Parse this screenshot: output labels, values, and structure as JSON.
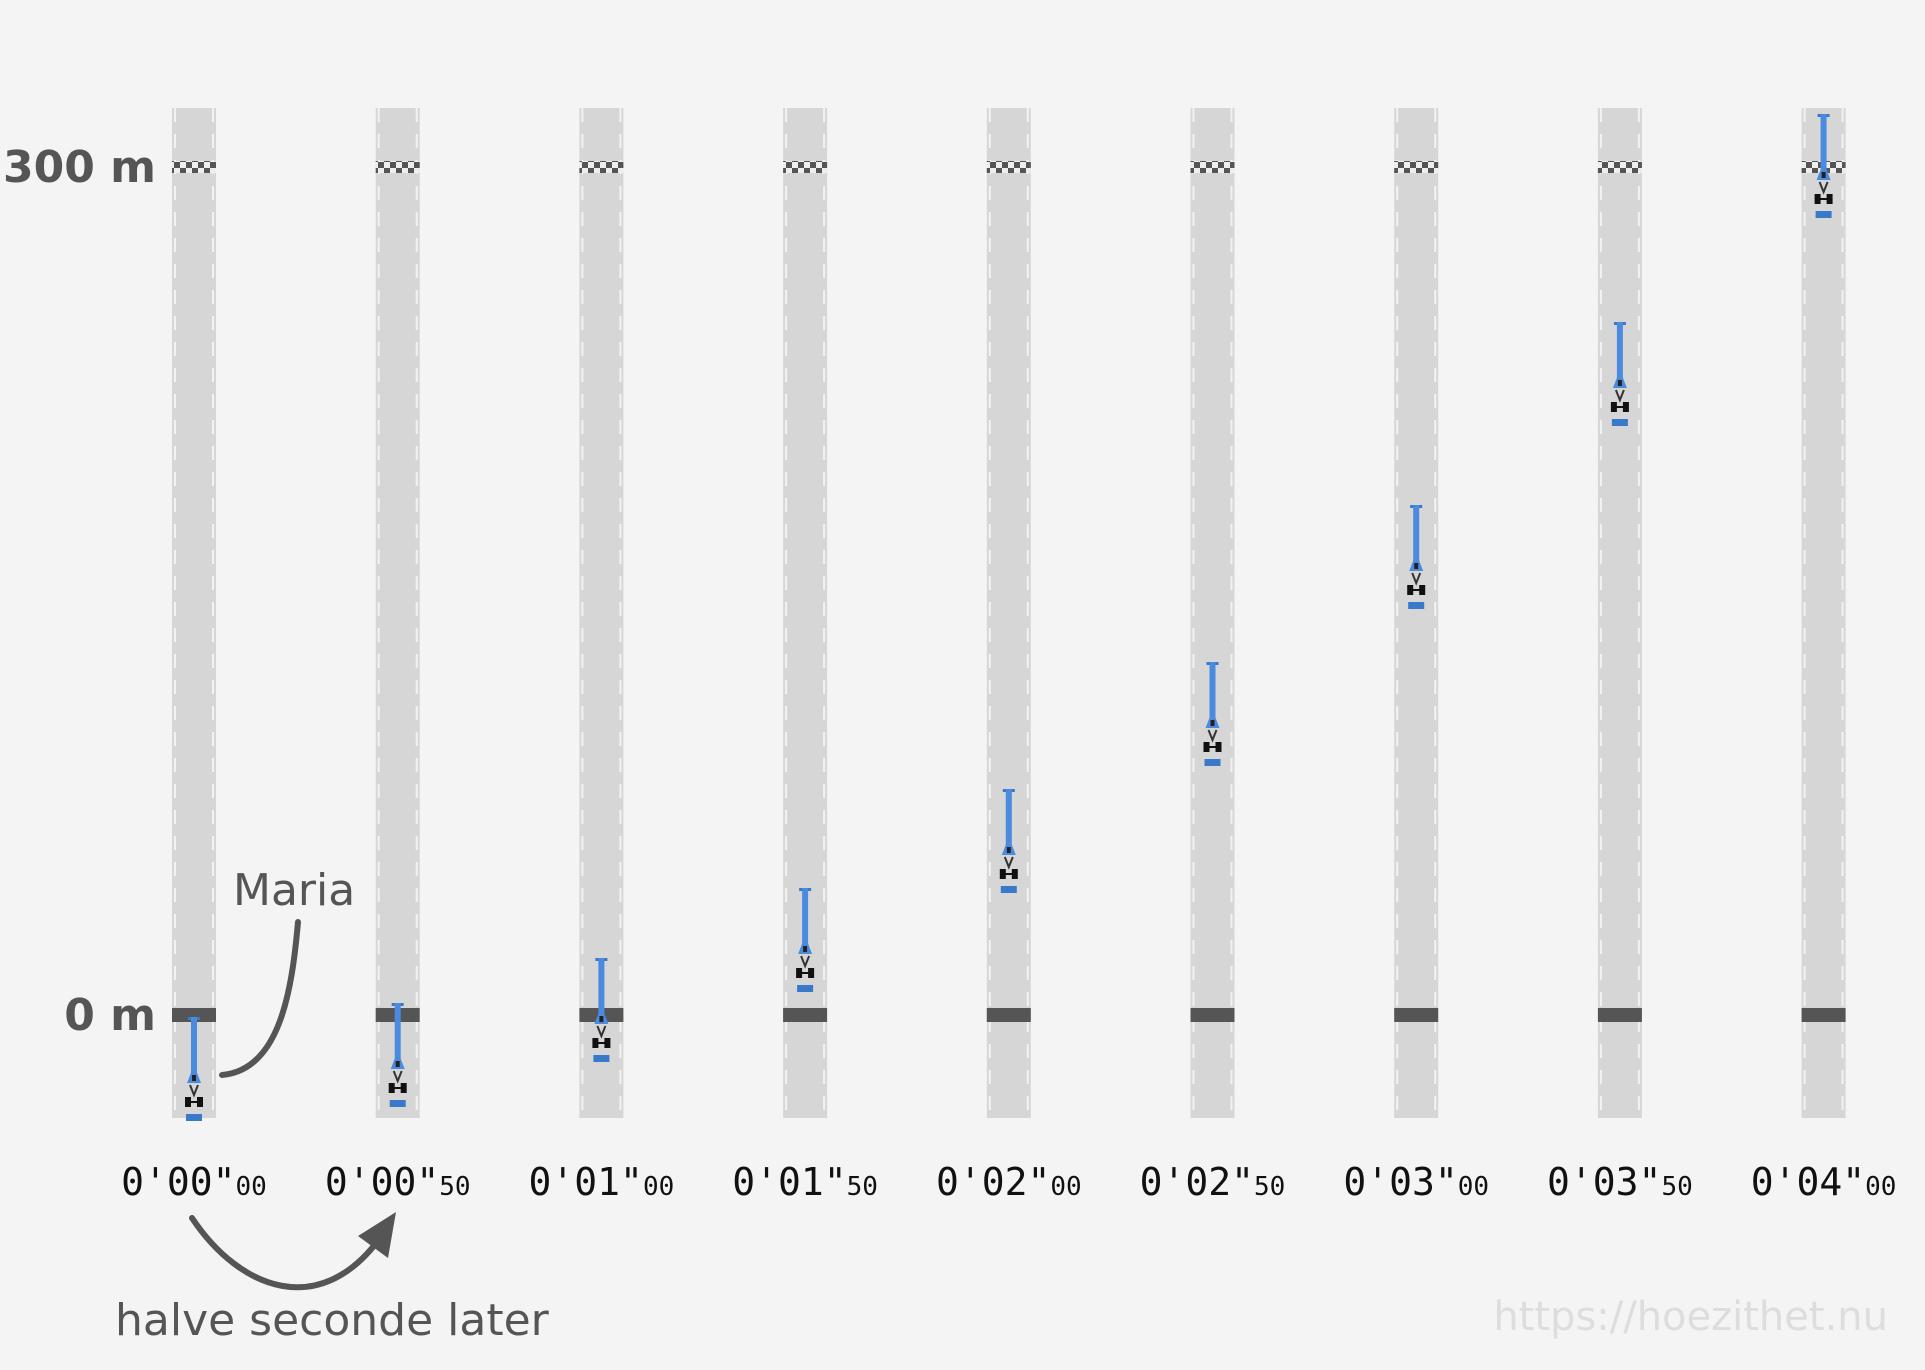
{
  "labels": {
    "top_distance": "300 m",
    "start_distance": "0 m",
    "driver": "Maria",
    "arrow_caption": "halve seconde later",
    "url": "https://hoezithet.nu"
  },
  "lanes": [
    {
      "time": "0'00\"",
      "hundredths": "00"
    },
    {
      "time": "0'00\"",
      "hundredths": "50"
    },
    {
      "time": "0'01\"",
      "hundredths": "00"
    },
    {
      "time": "0'01\"",
      "hundredths": "50"
    },
    {
      "time": "0'02\"",
      "hundredths": "00"
    },
    {
      "time": "0'02\"",
      "hundredths": "50"
    },
    {
      "time": "0'03\"",
      "hundredths": "00"
    },
    {
      "time": "0'03\"",
      "hundredths": "50"
    },
    {
      "time": "0'04\"",
      "hundredths": "00"
    }
  ]
}
